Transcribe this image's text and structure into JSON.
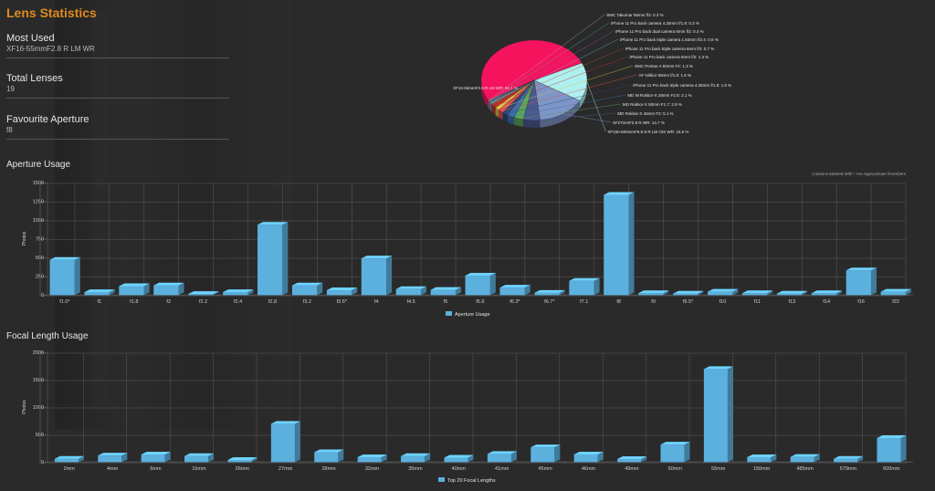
{
  "page": {
    "title": "Lens Statistics",
    "stats": [
      {
        "label": "Most Used",
        "value": "XF16-55mmF2.8 R LM WR"
      },
      {
        "label": "Total Lenses",
        "value": "19"
      },
      {
        "label": "Favourite Aperture",
        "value": "f8"
      }
    ],
    "aperture_section_title": "Aperture Usage",
    "focal_section_title": "Focal Length Usage",
    "approx_note": "Columns Marked With * Are Approximate f/numbers"
  },
  "chart_data": [
    {
      "type": "pie",
      "labels": [
        "XF16-55mmF2.8 R LM WR",
        "XF150-600mmF5.6-8 R LM OIS WR",
        "XF27mmF2.8 R WR",
        "MD Rokkor-X 45mm F2",
        "MD Rokkor-X 50mm F1.7",
        "MD W.Rokkor-X 28mm F2.8",
        "iPhone 11 Pro back triple camera 4.25mm f/1.8",
        "AF Nikkor 50mm f/1.8",
        "SMC Pentax-A 50mm F2",
        "iPhone 11 Pro back camera 6mm f/2",
        "iPhone 11 Pro back triple camera 6mm f/2",
        "iPhone 11 Pro back triple camera 1.54mm f/2.4",
        "iPhone 11 Pro back dual camera 6mm f/2",
        "iPhone 11 Pro back camera 4.25mm f/1.8",
        "SMC Takumar 55mm f/2"
      ],
      "values": [
        51.1,
        15.5,
        14.7,
        5.1,
        2.9,
        2.1,
        1.8,
        1.6,
        1.3,
        1.3,
        0.7,
        0.6,
        0.4,
        0.3,
        0.3
      ],
      "display_labels": [
        "XF16-55mmF2.8 R LM WR: 51.1 %",
        "XF150-600mmF5.6-8 R LM OIS WR: 15.5 %",
        "XF27mmF2.8 R WR: 14.7 %",
        "MD Rokkor-X 45mm F2: 5.1 %",
        "MD Rokkor-X 50mm F1.7: 2.9 %",
        "MD W.Rokkor-X 28mm F2.8: 2.1 %",
        "iPhone 11 Pro back triple camera 4.25mm f/1.8: 1.8 %",
        "AF Nikkor 50mm f/1.8: 1.6 %",
        "SMC Pentax-A 50mm F2: 1.3 %",
        "iPhone 11 Pro back camera 6mm f/2: 1.3 %",
        "iPhone 11 Pro back triple camera 6mm f/2: 0.7 %",
        "iPhone 11 Pro back triple camera 1.54mm f/2.4: 0.6 %",
        "iPhone 11 Pro back dual camera 6mm f/2: 0.4 %",
        "iPhone 11 Pro back camera 4.25mm f/1.8: 0.3 %",
        "SMC Takumar 55mm f/2: 0.3 %"
      ],
      "colors": [
        "#f5135e",
        "#aef0ef",
        "#7e95c7",
        "#4a5a8f",
        "#5aa55a",
        "#3b6fb0",
        "#2f4a7a",
        "#e05050",
        "#e0c24a",
        "#c03030",
        "#aa5533",
        "#6fb0d0",
        "#8855aa",
        "#4fa6a0",
        "#aaaaaa"
      ]
    },
    {
      "type": "bar",
      "title": "Aperture Usage",
      "ylabel": "Photos",
      "ylim": [
        0,
        1500
      ],
      "yticks": [
        0,
        250,
        500,
        750,
        1000,
        1250,
        1500
      ],
      "grid": true,
      "legend": "bottom-center",
      "categories": [
        "f1.0*",
        "f1",
        "f1.8",
        "f2",
        "f2.2",
        "f2.4",
        "f2.8",
        "f3.2",
        "f3.6*",
        "f4",
        "f4.5",
        "f5",
        "f5.6",
        "f6.3*",
        "f6.7*",
        "f7.1",
        "f8",
        "f9",
        "f9.5*",
        "f10",
        "f11",
        "f13",
        "f14",
        "f16",
        "f22"
      ],
      "series": [
        {
          "name": "Aperture Usage",
          "color": "#5cb0de",
          "values": [
            470,
            40,
            120,
            130,
            15,
            40,
            940,
            130,
            65,
            490,
            80,
            70,
            260,
            100,
            30,
            190,
            1340,
            25,
            20,
            45,
            25,
            20,
            25,
            330,
            45
          ]
        }
      ]
    },
    {
      "type": "bar",
      "title": "Focal Length Usage",
      "ylabel": "Photos",
      "ylim": [
        0,
        2000
      ],
      "yticks": [
        0,
        500,
        1000,
        1500,
        2000
      ],
      "grid": true,
      "legend": "bottom-center",
      "categories": [
        "2mm",
        "4mm",
        "6mm",
        "16mm",
        "26mm",
        "27mm",
        "28mm",
        "32mm",
        "35mm",
        "40mm",
        "41mm",
        "45mm",
        "46mm",
        "49mm",
        "50mm",
        "55mm",
        "150mm",
        "485mm",
        "579mm",
        "600mm"
      ],
      "series": [
        {
          "name": "Top 20 Focal Lengths",
          "color": "#5cb0de",
          "values": [
            60,
            120,
            140,
            110,
            40,
            700,
            180,
            90,
            110,
            80,
            150,
            270,
            140,
            55,
            320,
            1700,
            90,
            95,
            60,
            440
          ]
        }
      ]
    }
  ]
}
